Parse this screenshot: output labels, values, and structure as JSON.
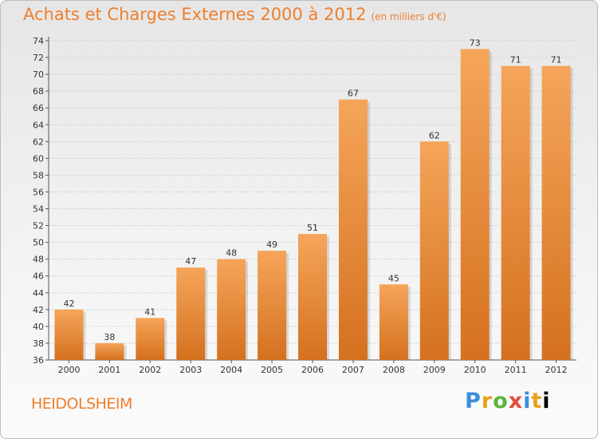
{
  "header": {
    "title": "Achats et Charges Externes 2000 à 2012",
    "subtitle": "(en milliers d'€)"
  },
  "footer": {
    "city": "HEIDOLSHEIM",
    "logo_letters": [
      "P",
      "r",
      "o",
      "x",
      "i",
      "t",
      "i"
    ]
  },
  "colors": {
    "title": "#ee7f2d",
    "bar_top": "#f5a55a",
    "bar_bottom": "#d4711f",
    "grid": "#cfcfcf"
  },
  "chart_data": {
    "type": "bar",
    "title": "Achats et Charges Externes 2000 à 2012",
    "subtitle": "(en milliers d'€)",
    "categories": [
      "2000",
      "2001",
      "2002",
      "2003",
      "2004",
      "2005",
      "2006",
      "2007",
      "2008",
      "2009",
      "2010",
      "2011",
      "2012"
    ],
    "values": [
      42,
      38,
      41,
      47,
      48,
      49,
      51,
      67,
      45,
      62,
      73,
      71,
      71
    ],
    "xlabel": "",
    "ylabel": "",
    "ylim": [
      36,
      74
    ],
    "yticks": [
      36,
      38,
      40,
      42,
      44,
      46,
      48,
      50,
      52,
      54,
      56,
      58,
      60,
      62,
      64,
      66,
      68,
      70,
      72,
      74
    ],
    "grid": true,
    "data_labels": true
  }
}
